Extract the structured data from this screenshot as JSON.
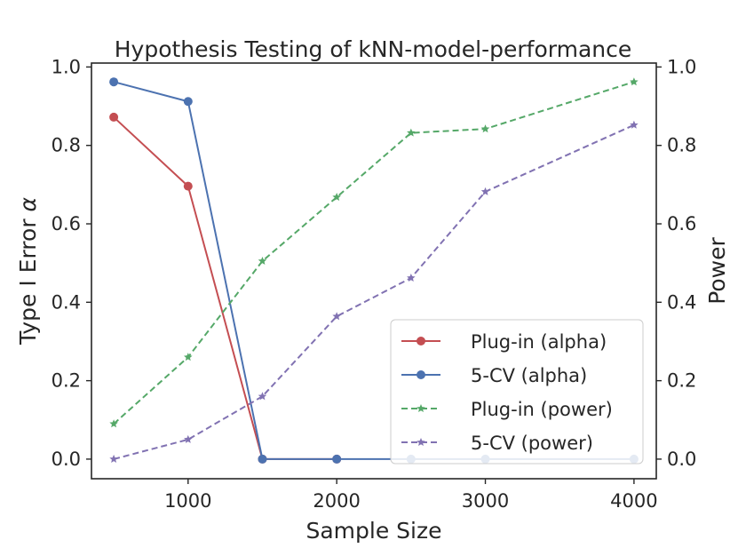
{
  "chart_data": {
    "type": "line",
    "title": "Hypothesis Testing of kNN-model-performance",
    "xlabel": "Sample Size",
    "ylabel": "Type I Error α",
    "y2label": "Power",
    "y2label_color": "#0000ff",
    "xlim": [
      350,
      4150
    ],
    "ylim": [
      -0.05,
      1.01
    ],
    "y2lim": [
      -0.05,
      1.01
    ],
    "xticks": [
      1000,
      2000,
      3000,
      4000
    ],
    "yticks": [
      0.0,
      0.2,
      0.4,
      0.6,
      0.8,
      1.0
    ],
    "y2ticks": [
      0.0,
      0.2,
      0.4,
      0.6,
      0.8,
      1.0
    ],
    "x": [
      500,
      1000,
      1500,
      2000,
      2500,
      3000,
      4000
    ],
    "series": [
      {
        "name": "Plug-in (alpha)",
        "axis": "left",
        "color": "#c44e52",
        "dashed": false,
        "marker": "circle",
        "x": [
          500,
          1000,
          1500,
          2000
        ],
        "values": [
          0.872,
          0.696,
          0.0,
          0.0
        ]
      },
      {
        "name": "5-CV (alpha)",
        "axis": "left",
        "color": "#4c72b0",
        "dashed": false,
        "marker": "circle",
        "x": [
          500,
          1000,
          1500,
          2000,
          2500,
          3000,
          4000
        ],
        "values": [
          0.962,
          0.912,
          0.0,
          0.0,
          0.0,
          0.0,
          0.0
        ]
      },
      {
        "name": "Plug-in (power)",
        "axis": "right",
        "color": "#55a868",
        "dashed": true,
        "marker": "star",
        "x": [
          500,
          1000,
          1500,
          2000,
          2500,
          3000,
          4000
        ],
        "values": [
          0.09,
          0.26,
          0.505,
          0.668,
          0.832,
          0.842,
          0.962
        ]
      },
      {
        "name": "5-CV (power)",
        "axis": "right",
        "color": "#8172b2",
        "dashed": true,
        "marker": "star",
        "x": [
          500,
          1000,
          1500,
          2000,
          2500,
          3000,
          4000
        ],
        "values": [
          0.0,
          0.05,
          0.16,
          0.364,
          0.462,
          0.682,
          0.852
        ]
      }
    ],
    "legend_position": "lower-right",
    "grid": false
  }
}
